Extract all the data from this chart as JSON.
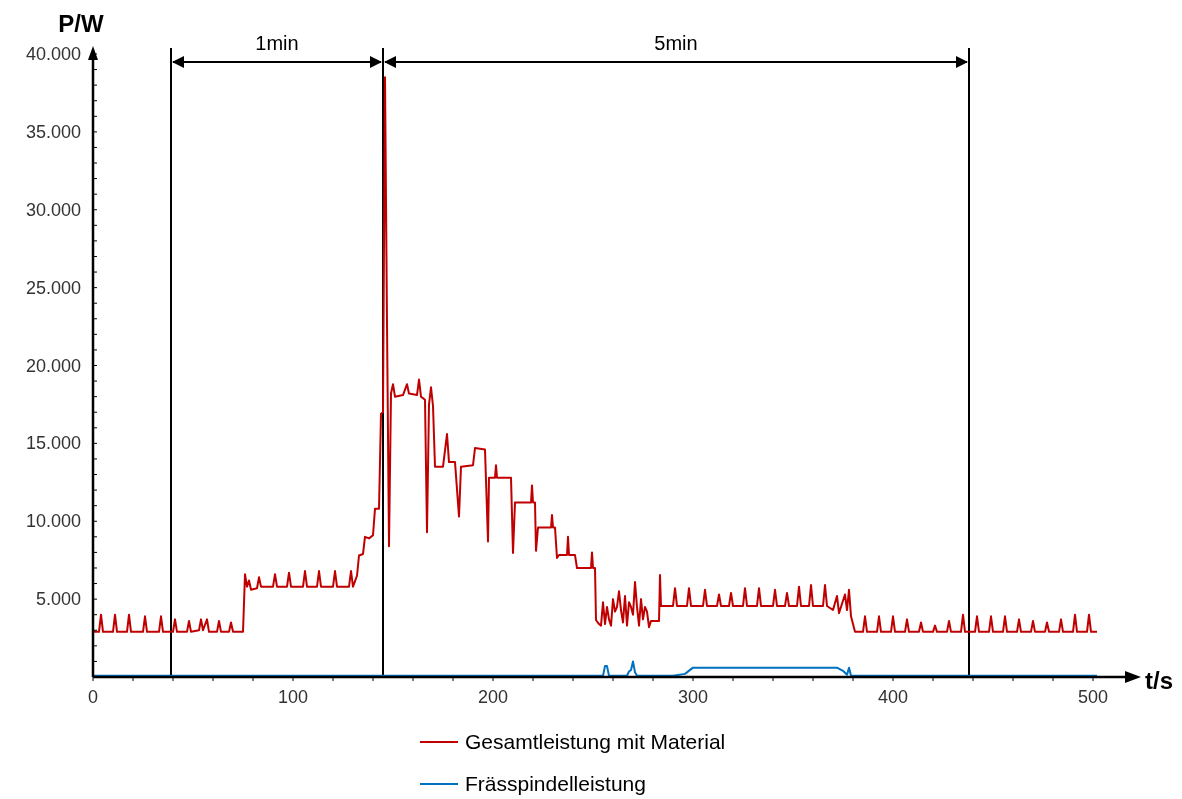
{
  "chart_data": {
    "type": "line",
    "xlabel": "t/s",
    "ylabel": "P/W",
    "xlim": [
      0,
      520
    ],
    "ylim": [
      0,
      40000
    ],
    "xticks": [
      0,
      {
        "value": 20,
        "label": null
      },
      {
        "value": 40,
        "label": null
      },
      {
        "value": 60,
        "label": null
      },
      {
        "value": 80,
        "label": null
      },
      100,
      {
        "value": 120,
        "label": null
      },
      {
        "value": 140,
        "label": null
      },
      {
        "value": 160,
        "label": null
      },
      {
        "value": 180,
        "label": null
      },
      200,
      {
        "value": 220,
        "label": null
      },
      {
        "value": 240,
        "label": null
      },
      {
        "value": 260,
        "label": null
      },
      {
        "value": 280,
        "label": null
      },
      300,
      {
        "value": 320,
        "label": null
      },
      {
        "value": 340,
        "label": null
      },
      {
        "value": 360,
        "label": null
      },
      {
        "value": 380,
        "label": null
      },
      400,
      {
        "value": 420,
        "label": null
      },
      {
        "value": 440,
        "label": null
      },
      {
        "value": 460,
        "label": null
      },
      {
        "value": 480,
        "label": null
      },
      500
    ],
    "yticks": [
      {
        "value": 1000,
        "label": null
      },
      {
        "value": 2000,
        "label": null
      },
      {
        "value": 3000,
        "label": null
      },
      {
        "value": 4000,
        "label": null
      },
      {
        "value": 5000,
        "label": "5.000"
      },
      {
        "value": 6000,
        "label": null
      },
      {
        "value": 7000,
        "label": null
      },
      {
        "value": 8000,
        "label": null
      },
      {
        "value": 9000,
        "label": null
      },
      {
        "value": 10000,
        "label": "10.000"
      },
      {
        "value": 11000,
        "label": null
      },
      {
        "value": 12000,
        "label": null
      },
      {
        "value": 13000,
        "label": null
      },
      {
        "value": 14000,
        "label": null
      },
      {
        "value": 15000,
        "label": "15.000"
      },
      {
        "value": 16000,
        "label": null
      },
      {
        "value": 17000,
        "label": null
      },
      {
        "value": 18000,
        "label": null
      },
      {
        "value": 19000,
        "label": null
      },
      {
        "value": 20000,
        "label": "20.000"
      },
      {
        "value": 21000,
        "label": null
      },
      {
        "value": 22000,
        "label": null
      },
      {
        "value": 23000,
        "label": null
      },
      {
        "value": 24000,
        "label": null
      },
      {
        "value": 25000,
        "label": "25.000"
      },
      {
        "value": 26000,
        "label": null
      },
      {
        "value": 27000,
        "label": null
      },
      {
        "value": 28000,
        "label": null
      },
      {
        "value": 29000,
        "label": null
      },
      {
        "value": 30000,
        "label": "30.000"
      },
      {
        "value": 31000,
        "label": null
      },
      {
        "value": 32000,
        "label": null
      },
      {
        "value": 33000,
        "label": null
      },
      {
        "value": 34000,
        "label": null
      },
      {
        "value": 35000,
        "label": "35.000"
      },
      {
        "value": 36000,
        "label": null
      },
      {
        "value": 37000,
        "label": null
      },
      {
        "value": 38000,
        "label": null
      },
      {
        "value": 39000,
        "label": null
      },
      {
        "value": 40000,
        "label": "40.000"
      }
    ],
    "grid": false,
    "legend": "bottom",
    "marker": "none",
    "line_style": "solid",
    "ref_lines": [
      {
        "axis": "x",
        "value": 39,
        "color": "#000000"
      },
      {
        "axis": "x",
        "value": 145,
        "color": "#000000"
      },
      {
        "axis": "x",
        "value": 438,
        "color": "#000000"
      }
    ],
    "annotations": [
      "1min",
      "5min"
    ],
    "series": [
      {
        "name": "Gesamtleistung mit Material",
        "color": "#c00000",
        "x": [
          0,
          3,
          4,
          5,
          10,
          11,
          12,
          17,
          18,
          19,
          25,
          26,
          27,
          33,
          34,
          35,
          40,
          41,
          42,
          47,
          48,
          49,
          53,
          54,
          55,
          57,
          58,
          62,
          63,
          64,
          68,
          69,
          70,
          75,
          76,
          77,
          78,
          79,
          82,
          83,
          84,
          90,
          91,
          92,
          97,
          98,
          99,
          105,
          106,
          107,
          112,
          113,
          114,
          120,
          121,
          122,
          128,
          129,
          130,
          132,
          133,
          135,
          136,
          138,
          140,
          141,
          143,
          144,
          145,
          146,
          147,
          148,
          149,
          150,
          151,
          155,
          157,
          158,
          162,
          163,
          164,
          166,
          167,
          168,
          169,
          170,
          171,
          175,
          177,
          178,
          181,
          183,
          184,
          190,
          191,
          196,
          197.5,
          198,
          201,
          201.5,
          202,
          209,
          210,
          211,
          219,
          219.5,
          220,
          221,
          221.5,
          222.5,
          229,
          229.5,
          230,
          231,
          232,
          233,
          237,
          237.5,
          238,
          241,
          242,
          249,
          249.5,
          250,
          251,
          251.5,
          253,
          254,
          255,
          256,
          257,
          258,
          259,
          260,
          261,
          262,
          263,
          264,
          265,
          266,
          267,
          268,
          269,
          270,
          271,
          272,
          273,
          274,
          275,
          276,
          277,
          278,
          279,
          283,
          283.5,
          284,
          290,
          291,
          292,
          297,
          298,
          299,
          305,
          306,
          307,
          312,
          313,
          314,
          318,
          319,
          320,
          325,
          326,
          327,
          332,
          333,
          334,
          340,
          341,
          342,
          346,
          347,
          348,
          352,
          353,
          354,
          358,
          359,
          360,
          365,
          366,
          367,
          370,
          372,
          373,
          376,
          377,
          378,
          379,
          381,
          385,
          386,
          387,
          392,
          393,
          394,
          399,
          400,
          401,
          406,
          407,
          408,
          413,
          414,
          415,
          420,
          421,
          422,
          427,
          428,
          429,
          434,
          435,
          436,
          441,
          442,
          443,
          448,
          449,
          450,
          455,
          456,
          457,
          462,
          463,
          464,
          469,
          470,
          471,
          476,
          477,
          478,
          483,
          484,
          485,
          490,
          491,
          492,
          497,
          498,
          499,
          502
        ],
        "values": [
          2900,
          2900,
          4000,
          2900,
          2900,
          4000,
          2900,
          2900,
          4000,
          2900,
          2900,
          3900,
          2900,
          2900,
          3900,
          2900,
          2900,
          3700,
          2900,
          2900,
          3600,
          2900,
          3000,
          3700,
          3000,
          3700,
          2900,
          2900,
          3600,
          2900,
          2900,
          3500,
          2900,
          2900,
          6600,
          5800,
          6200,
          5600,
          5700,
          6400,
          5800,
          5800,
          6600,
          5800,
          5800,
          6700,
          5800,
          5800,
          6800,
          5800,
          5800,
          6800,
          5800,
          5800,
          6800,
          5800,
          5800,
          6800,
          5800,
          6500,
          7800,
          7900,
          9000,
          8900,
          9100,
          10800,
          10800,
          16900,
          17000,
          38500,
          22700,
          8400,
          18200,
          18800,
          18000,
          18100,
          18800,
          18200,
          18100,
          19100,
          18000,
          17800,
          9300,
          17500,
          18600,
          17400,
          13500,
          13500,
          15600,
          13800,
          13800,
          10300,
          13500,
          13600,
          14700,
          14600,
          8700,
          12800,
          12800,
          13600,
          12800,
          12800,
          7960,
          11200,
          11200,
          12300,
          11200,
          11200,
          8100,
          9600,
          9600,
          10400,
          9600,
          9600,
          7640,
          7830,
          7830,
          9000,
          7830,
          7830,
          7000,
          7000,
          8000,
          7000,
          7000,
          3660,
          3400,
          3300,
          4800,
          3400,
          4500,
          3700,
          3300,
          5000,
          4200,
          4500,
          5500,
          4300,
          3500,
          5200,
          3300,
          4800,
          4500,
          4000,
          6100,
          4500,
          3300,
          5000,
          3700,
          4500,
          4200,
          3200,
          3600,
          3600,
          6550,
          4560,
          4560,
          5700,
          4560,
          4560,
          5700,
          4560,
          4560,
          5600,
          4560,
          4560,
          5300,
          4560,
          4560,
          5400,
          4560,
          4560,
          5700,
          4560,
          4560,
          5700,
          4560,
          4560,
          5600,
          4560,
          4560,
          5400,
          4560,
          4560,
          5800,
          4560,
          4560,
          5900,
          4560,
          4560,
          5900,
          4560,
          4300,
          5200,
          4100,
          5300,
          4300,
          5600,
          3900,
          2900,
          2900,
          3900,
          2900,
          2900,
          3900,
          2900,
          2900,
          3900,
          2900,
          2900,
          3700,
          2900,
          2900,
          3500,
          2900,
          2900,
          3300,
          2900,
          2900,
          3600,
          2900,
          2900,
          4000,
          2900,
          2900,
          3900,
          2900,
          2900,
          3900,
          2900,
          2900,
          3900,
          2900,
          2900,
          3700,
          2900,
          2900,
          3600,
          2900,
          2900,
          3500,
          2900,
          2900,
          3700,
          2900,
          2900,
          4000,
          2900,
          2900,
          4000,
          2900,
          2900
        ]
      },
      {
        "name": "Frässpindelleistung",
        "color": "#0070c0",
        "x": [
          0,
          255,
          256,
          257,
          258,
          267,
          268,
          269,
          270,
          271,
          272,
          290,
          296,
          300,
          372,
          375,
          377,
          378,
          379,
          502
        ],
        "values": [
          80,
          80,
          700,
          700,
          80,
          80,
          350,
          450,
          1000,
          300,
          80,
          80,
          200,
          600,
          600,
          400,
          150,
          600,
          80,
          80
        ]
      }
    ]
  }
}
